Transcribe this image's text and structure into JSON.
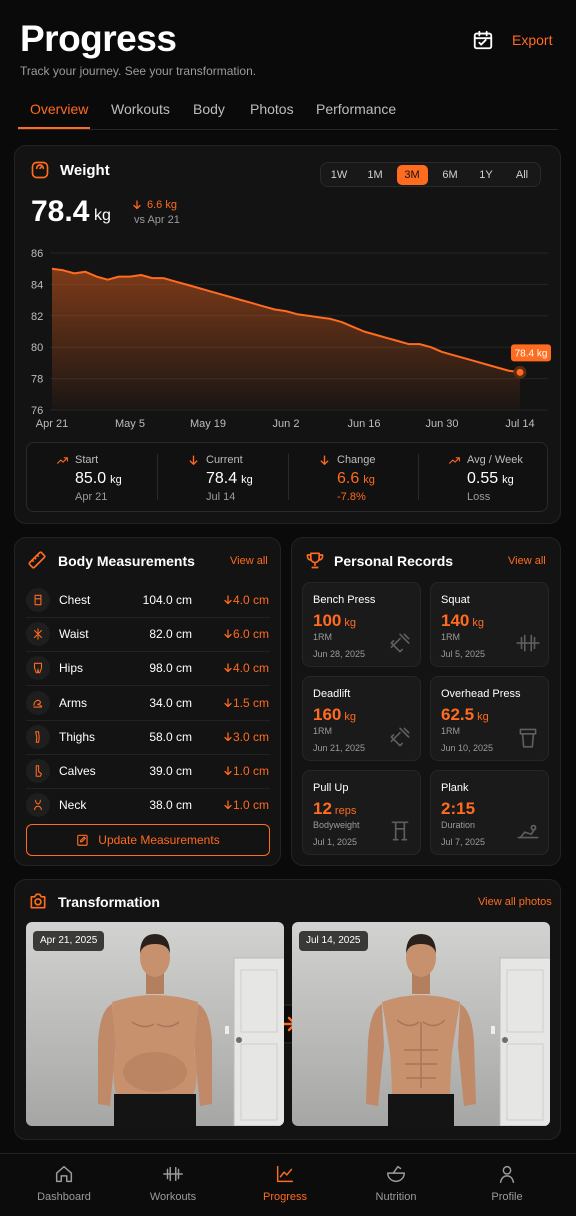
{
  "header": {
    "title": "Progress",
    "subtitle": "Track your journey. See your transformation.",
    "action": "Export"
  },
  "tabs": [
    "Overview",
    "Workouts",
    "Body",
    "Photos",
    "Performance"
  ],
  "weight": {
    "title": "Weight",
    "value": "78.4",
    "unit": "kg",
    "change": "6.6 kg",
    "change_note": "vs Apr 21",
    "ranges": [
      "1W",
      "1M",
      "3M",
      "6M",
      "1Y",
      "All"
    ],
    "stats": [
      {
        "label": "Start",
        "value": "85.0",
        "unit": "kg",
        "note": "Apr 21"
      },
      {
        "label": "Current",
        "value": "78.4",
        "unit": "kg",
        "note": "Jul 14"
      },
      {
        "label": "Change",
        "value": "6.6",
        "unit": "kg",
        "note": "-7.8%"
      },
      {
        "label": "Avg / Week",
        "value": "0.55",
        "unit": "kg",
        "note": "Loss"
      }
    ]
  },
  "chart_data": {
    "type": "line",
    "color": "#ff6b1f",
    "grid": true,
    "categories": [
      "Apr 21",
      null,
      null,
      null,
      null,
      null,
      null,
      "May 5",
      null,
      null,
      null,
      null,
      null,
      null,
      "May 19",
      null,
      null,
      null,
      null,
      null,
      null,
      "Jun 2",
      null,
      null,
      null,
      null,
      null,
      null,
      "Jun 16",
      null,
      null,
      null,
      null,
      null,
      null,
      "Jun 30",
      null,
      null,
      null,
      null,
      null,
      null,
      "Jul 14"
    ],
    "values": [
      85.0,
      84.9,
      84.7,
      84.8,
      84.5,
      84.3,
      84.5,
      84.5,
      84.6,
      84.4,
      84.4,
      84.2,
      84.0,
      83.8,
      83.6,
      83.4,
      83.2,
      83.0,
      82.8,
      82.6,
      82.4,
      82.3,
      82.1,
      82.0,
      81.9,
      81.8,
      81.6,
      81.3,
      81.0,
      80.8,
      80.6,
      80.4,
      80.2,
      80.2,
      80.0,
      79.7,
      79.5,
      79.3,
      79.1,
      78.9,
      78.7,
      78.5,
      78.4
    ],
    "annotation": "78.4 kg",
    "ylim": [
      76,
      86
    ],
    "yticks": [
      76,
      78,
      80,
      82,
      84,
      86
    ]
  },
  "body_measurements": {
    "title": "Body Measurements",
    "link": "View all",
    "button": "Update Measurements",
    "rows": [
      {
        "name": "Chest",
        "value": "104.0 cm",
        "change": "4.0 cm"
      },
      {
        "name": "Waist",
        "value": "82.0 cm",
        "change": "6.0 cm"
      },
      {
        "name": "Hips",
        "value": "98.0 cm",
        "change": "4.0 cm"
      },
      {
        "name": "Arms",
        "value": "34.0 cm",
        "change": "1.5 cm"
      },
      {
        "name": "Thighs",
        "value": "58.0 cm",
        "change": "3.0 cm"
      },
      {
        "name": "Calves",
        "value": "39.0 cm",
        "change": "1.0 cm"
      },
      {
        "name": "Neck",
        "value": "38.0 cm",
        "change": "1.0 cm"
      }
    ]
  },
  "personal_records": {
    "title": "Personal Records",
    "link": "View all",
    "records": [
      {
        "name": "Bench Press",
        "value": "100",
        "unit": "kg",
        "type": "1RM",
        "date": "Jun 28, 2025"
      },
      {
        "name": "Squat",
        "value": "140",
        "unit": "kg",
        "type": "1RM",
        "date": "Jul 5, 2025"
      },
      {
        "name": "Deadlift",
        "value": "160",
        "unit": "kg",
        "type": "1RM",
        "date": "Jun 21, 2025"
      },
      {
        "name": "Overhead Press",
        "value": "62.5",
        "unit": "kg",
        "type": "1RM",
        "date": "Jun 10, 2025"
      },
      {
        "name": "Pull Up",
        "value": "12",
        "unit": "reps",
        "type": "Bodyweight",
        "date": "Jul 1, 2025"
      },
      {
        "name": "Plank",
        "value": "2:15",
        "unit": null,
        "type": "Duration",
        "date": "Jul 7, 2025"
      }
    ]
  },
  "transformation": {
    "title": "Transformation",
    "link": "View all photos",
    "photos": [
      {
        "date": "Apr 21, 2025"
      },
      {
        "date": "Jul 14, 2025"
      }
    ]
  },
  "nav": [
    "Dashboard",
    "Workouts",
    "Progress",
    "Nutrition",
    "Profile"
  ]
}
